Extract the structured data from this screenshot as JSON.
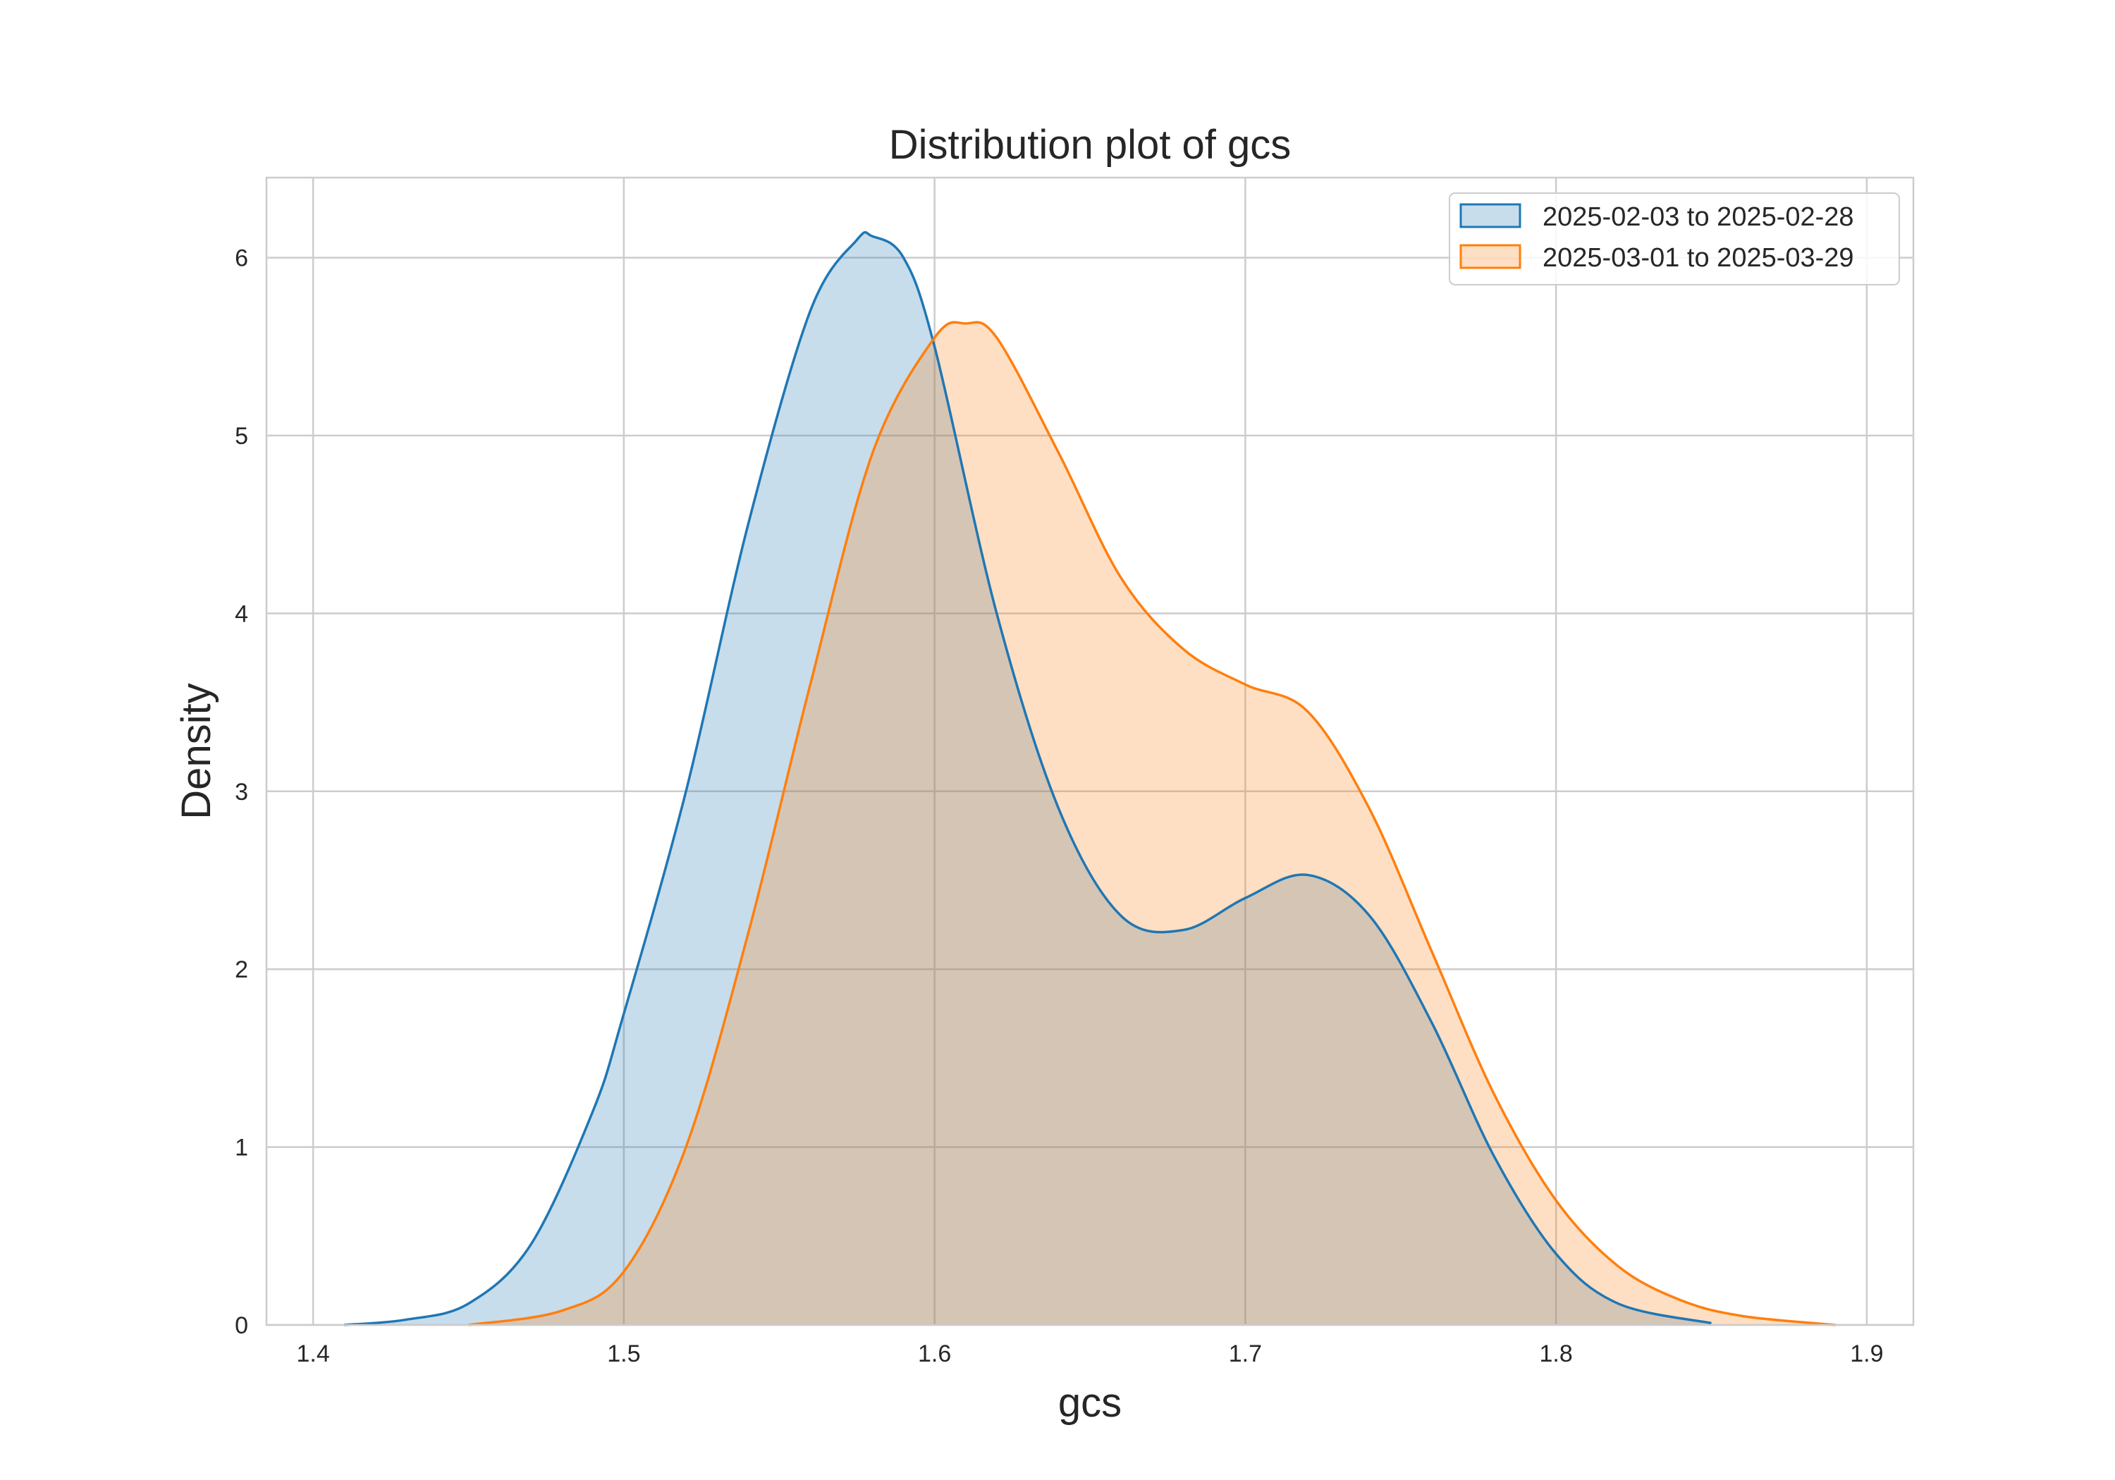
{
  "chart_data": {
    "type": "area",
    "title": "Distribution plot of gcs",
    "xlabel": "gcs",
    "ylabel": "Density",
    "xlim": [
      1.385,
      1.915
    ],
    "ylim": [
      0,
      6.45
    ],
    "xticks": [
      1.4,
      1.5,
      1.6,
      1.7,
      1.8,
      1.9
    ],
    "xtick_labels": [
      "1.4",
      "1.5",
      "1.6",
      "1.7",
      "1.8",
      "1.9"
    ],
    "yticks": [
      0,
      1,
      2,
      3,
      4,
      5,
      6
    ],
    "ytick_labels": [
      "0",
      "1",
      "2",
      "3",
      "4",
      "5",
      "6"
    ],
    "grid": true,
    "legend_position": "top-right",
    "series": [
      {
        "name": "2025-02-03 to 2025-02-28",
        "color": "#1f77b4",
        "fill_opacity": 0.25,
        "points": [
          [
            1.41,
            0.0
          ],
          [
            1.43,
            0.03
          ],
          [
            1.45,
            0.12
          ],
          [
            1.47,
            0.45
          ],
          [
            1.49,
            1.2
          ],
          [
            1.5,
            1.75
          ],
          [
            1.52,
            3.0
          ],
          [
            1.54,
            4.5
          ],
          [
            1.56,
            5.7
          ],
          [
            1.575,
            6.1
          ],
          [
            1.58,
            6.12
          ],
          [
            1.59,
            6.0
          ],
          [
            1.6,
            5.5
          ],
          [
            1.62,
            4.0
          ],
          [
            1.64,
            2.9
          ],
          [
            1.66,
            2.3
          ],
          [
            1.68,
            2.22
          ],
          [
            1.7,
            2.4
          ],
          [
            1.72,
            2.53
          ],
          [
            1.74,
            2.3
          ],
          [
            1.76,
            1.7
          ],
          [
            1.78,
            0.95
          ],
          [
            1.8,
            0.4
          ],
          [
            1.82,
            0.12
          ],
          [
            1.85,
            0.01
          ]
        ]
      },
      {
        "name": "2025-03-01 to 2025-03-29",
        "color": "#ff7f0e",
        "fill_opacity": 0.25,
        "points": [
          [
            1.45,
            0.0
          ],
          [
            1.48,
            0.08
          ],
          [
            1.5,
            0.3
          ],
          [
            1.52,
            1.0
          ],
          [
            1.54,
            2.2
          ],
          [
            1.56,
            3.6
          ],
          [
            1.58,
            4.9
          ],
          [
            1.6,
            5.55
          ],
          [
            1.61,
            5.63
          ],
          [
            1.62,
            5.55
          ],
          [
            1.64,
            4.9
          ],
          [
            1.66,
            4.2
          ],
          [
            1.68,
            3.8
          ],
          [
            1.7,
            3.6
          ],
          [
            1.72,
            3.45
          ],
          [
            1.74,
            2.9
          ],
          [
            1.76,
            2.1
          ],
          [
            1.78,
            1.3
          ],
          [
            1.8,
            0.7
          ],
          [
            1.82,
            0.33
          ],
          [
            1.84,
            0.14
          ],
          [
            1.86,
            0.05
          ],
          [
            1.89,
            0.0
          ]
        ]
      }
    ]
  }
}
